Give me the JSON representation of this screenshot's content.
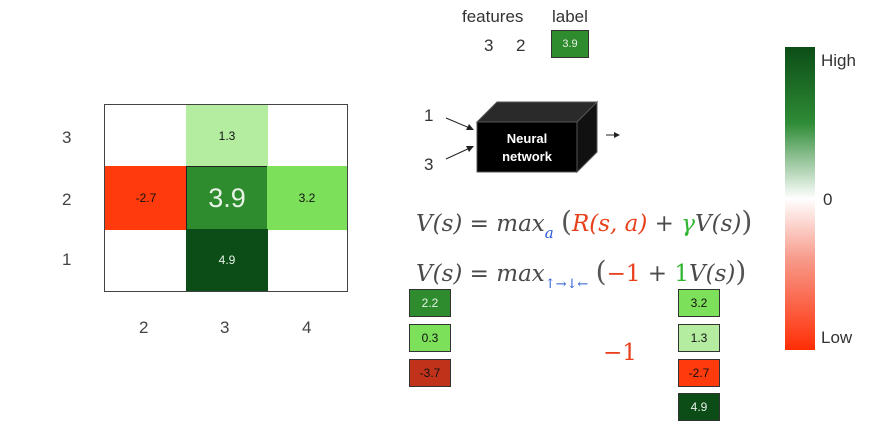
{
  "grid": {
    "row_labels": [
      "3",
      "2",
      "1"
    ],
    "col_labels": [
      "2",
      "3",
      "4"
    ],
    "cells": {
      "r3c3": "1.3",
      "r2c2": "-2.7",
      "r2c3": "3.9",
      "r2c4": "3.2",
      "r1c3": "4.9"
    }
  },
  "features_table": {
    "features_header": "features",
    "label_header": "label",
    "feature_values": [
      "3",
      "2"
    ],
    "label_value": "3.9"
  },
  "network": {
    "input_top": "1",
    "input_bottom": "3",
    "box_line1": "Neural",
    "box_line2": "network"
  },
  "equations": {
    "eq1": {
      "lhs": "V(s) = max",
      "subscript": "a",
      "reward": "R(s, a)",
      "plus": "+",
      "gamma": "γ",
      "value": "V(s)"
    },
    "eq2": {
      "lhs": "V(s) = max",
      "subscript": "↑→↓←",
      "reward": "−1",
      "plus": "+",
      "gamma": "1",
      "value": "V(s)"
    }
  },
  "left_values": [
    "2.2",
    "0.3",
    "-3.7"
  ],
  "right_values": [
    "3.2",
    "1.3",
    "-2.7",
    "4.9"
  ],
  "step_reward": "−1",
  "colorbar": {
    "high_label": "High",
    "zero_label": "0",
    "low_label": "Low"
  },
  "colors": {
    "dark_green": "#0c4d17",
    "mid_green": "#2e8b2e",
    "light_green": "#7de05a",
    "pale_green": "#b4eca0",
    "red": "#ff3a0d",
    "dark_red": "#c0321a"
  }
}
